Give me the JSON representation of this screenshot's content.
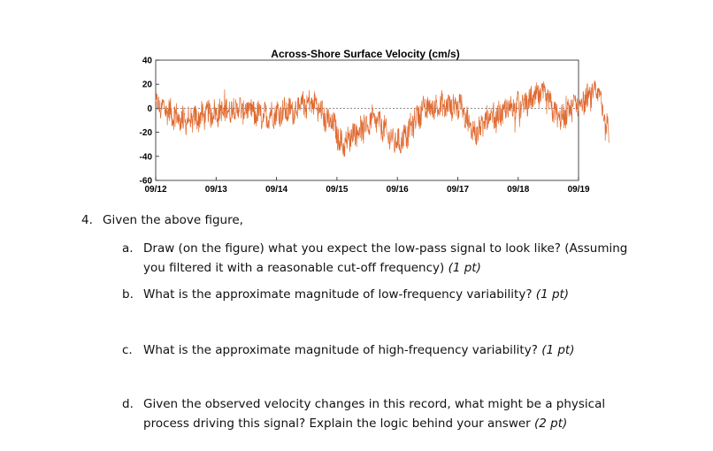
{
  "figure": {
    "title": "Across-Shore Surface Velocity (cm/s)"
  },
  "chart_data": {
    "type": "line",
    "title": "Across-Shore Surface Velocity (cm/s)",
    "xlabel": "",
    "ylabel": "",
    "ylim": [
      -60,
      40
    ],
    "yticks": [
      -60,
      -40,
      -20,
      0,
      20,
      40
    ],
    "xticks": [
      "09/12",
      "09/13",
      "09/14",
      "09/15",
      "09/16",
      "09/17",
      "09/18",
      "09/19"
    ],
    "xlim": [
      "09/12",
      "09/19 12:00"
    ],
    "grid": false,
    "legend": "none",
    "zero_line": "dashed",
    "series_color": "#e0692f",
    "low_frequency_trend": {
      "time_days_since_0912": [
        0.0,
        0.5,
        1.0,
        1.3,
        1.8,
        2.2,
        2.6,
        2.9,
        3.1,
        3.3,
        3.6,
        4.0,
        4.5,
        5.0,
        5.3,
        5.5,
        6.0,
        6.4,
        6.7,
        7.0,
        7.3,
        7.5
      ],
      "velocity_cm_s": [
        2,
        -10,
        -4,
        0,
        -6,
        -2,
        4,
        -12,
        -30,
        -20,
        -10,
        -28,
        0,
        2,
        -20,
        -10,
        2,
        10,
        -8,
        5,
        12,
        -18
      ]
    }
  },
  "questions": {
    "number": "4.",
    "stem": "Given the above figure,",
    "items": [
      {
        "letter": "a.",
        "text_line1": "Draw (on the figure) what you expect the low-pass signal to look like? (Assuming",
        "text_line2": "you filtered it with a reasonable cut-off frequency)",
        "points": "(1 pt)"
      },
      {
        "letter": "b.",
        "text_line1": "What is the approximate magnitude of low-frequency variability?",
        "points": "(1 pt)"
      },
      {
        "letter": "c.",
        "text_line1": "What is the approximate magnitude of high-frequency variability?",
        "points": "(1 pt)"
      },
      {
        "letter": "d.",
        "text_line1": "Given the observed velocity changes in this record, what might be a physical",
        "text_line2": "process driving this signal?  Explain the logic behind your answer",
        "points": "(2 pt)"
      }
    ]
  }
}
